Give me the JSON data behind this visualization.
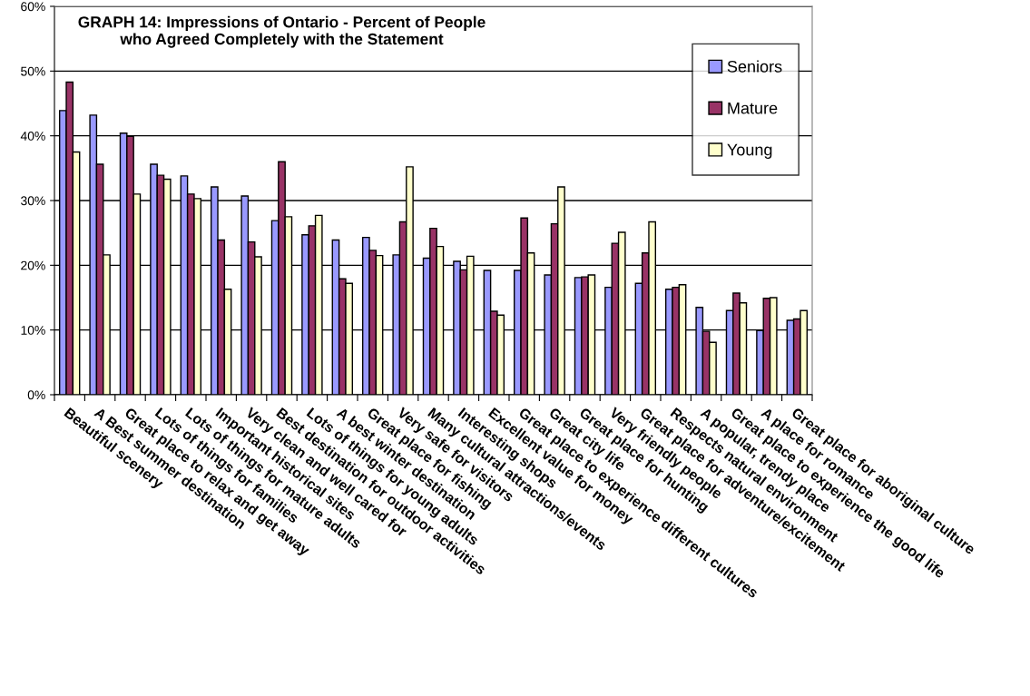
{
  "chart_data": {
    "type": "bar",
    "title": "GRAPH 14: Impressions of Ontario - Percent of People\nwho Agreed Completely with the Statement",
    "categories": [
      "Beautiful scenery",
      "A Best summer destination",
      "Great place to relax and get away",
      "Lots of things for families",
      "Lots of things for mature adults",
      "Important historical sites",
      "Very clean and well cared for",
      "Best destination for outdoor activities",
      "Lots of things for young adults",
      "A best winter destination",
      "Great place for fishing",
      "Very safe for visitors",
      "Many cultural attractions/events",
      "Interesting shops",
      "Excellent value for money",
      "Great place to experience different cultures",
      "Great city life",
      "Great place for hunting",
      "Very friendly people",
      "Great place for adventure/excitement",
      "Respects natural environment",
      "A popular, trendy place",
      "Great place to experience the good life",
      "A place for romance",
      "Great place for aboriginal culture"
    ],
    "series": [
      {
        "name": "Seniors",
        "color": "#9999ff",
        "values": [
          43.9,
          43.2,
          40.4,
          35.6,
          33.8,
          32.1,
          30.7,
          26.9,
          24.7,
          23.9,
          24.3,
          21.6,
          21.1,
          20.6,
          19.2,
          19.2,
          18.5,
          18.1,
          16.6,
          17.2,
          16.3,
          13.5,
          13.0,
          9.9,
          11.5
        ]
      },
      {
        "name": "Mature",
        "color": "#993366",
        "values": [
          48.3,
          35.6,
          39.9,
          33.9,
          31.0,
          23.9,
          23.6,
          36.0,
          26.1,
          17.9,
          22.3,
          26.7,
          25.7,
          19.3,
          12.9,
          27.3,
          26.4,
          18.2,
          23.4,
          21.9,
          16.6,
          9.8,
          15.7,
          14.9,
          11.7
        ]
      },
      {
        "name": "Young",
        "color": "#ffffcc",
        "values": [
          37.5,
          21.6,
          31.0,
          33.3,
          30.3,
          16.3,
          21.3,
          27.5,
          27.7,
          17.2,
          21.5,
          35.2,
          22.9,
          21.4,
          12.3,
          21.9,
          32.1,
          18.5,
          25.1,
          26.7,
          17.0,
          8.1,
          14.2,
          15.0,
          13.0
        ]
      }
    ],
    "ylim": [
      0,
      60
    ],
    "yticks": [
      {
        "value": 0,
        "label": "0%"
      },
      {
        "value": 10,
        "label": "10%"
      },
      {
        "value": 20,
        "label": "20%"
      },
      {
        "value": 30,
        "label": "30%"
      },
      {
        "value": 40,
        "label": "40%"
      },
      {
        "value": 50,
        "label": "50%"
      },
      {
        "value": 60,
        "label": "60%"
      }
    ],
    "grid": "y",
    "legend": "top right"
  }
}
